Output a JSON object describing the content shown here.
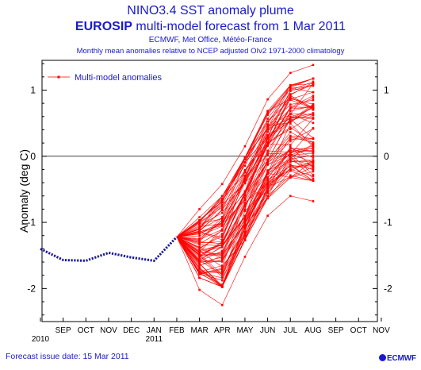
{
  "header": {
    "title": "NINO3.4 SST anomaly plume",
    "subtitle_bold": "EUROSIP",
    "subtitle_rest": "multi-model forecast from 1 Mar 2011",
    "orgs": "ECMWF, Met Office, Météo-France",
    "note": "Monthly mean anomalies relative to NCEP adjusted OIv2 1971-2000 climatology"
  },
  "footer": {
    "issue_date": "Forecast issue date: 15 Mar 2011",
    "logo": "ECMWF"
  },
  "colors": {
    "forecast": "#ff0000",
    "observed": "#1a1a99",
    "text": "#1a1acc"
  },
  "chart_data": {
    "type": "line",
    "xlabel": "",
    "ylabel": "Anomaly (deg C)",
    "ylim": [
      -2.5,
      1.45
    ],
    "yticks": [
      -2,
      -1,
      0,
      1
    ],
    "ytick_labels_left": [
      "-2",
      "-1",
      "0",
      "1"
    ],
    "ytick_labels_right": [
      "-2",
      "-1",
      "0",
      "1"
    ],
    "x_months": [
      "AUG",
      "SEP",
      "OCT",
      "NOV",
      "DEC",
      "JAN",
      "FEB",
      "MAR",
      "APR",
      "MAY",
      "JUN",
      "JUL",
      "AUG",
      "SEP",
      "OCT",
      "NOV"
    ],
    "x_month_labels": [
      "SEP",
      "OCT",
      "NOV",
      "DEC",
      "JAN",
      "FEB",
      "MAR",
      "APR",
      "MAY",
      "JUN",
      "JUL",
      "AUG",
      "SEP",
      "OCT",
      "NOV"
    ],
    "year_labels": [
      {
        "text": "2010",
        "month": "AUG"
      },
      {
        "text": "2011",
        "month": "JAN"
      }
    ],
    "zero_line": true,
    "grid": false,
    "legend": {
      "label": "Multi-model anomalies",
      "placement": "top-left"
    },
    "observed": {
      "months": [
        "AUG",
        "SEP",
        "OCT",
        "NOV",
        "DEC",
        "JAN",
        "FEB"
      ],
      "values": [
        -1.4,
        -1.57,
        -1.58,
        -1.46,
        -1.53,
        -1.58,
        -1.22
      ]
    },
    "forecast_start": {
      "month": "FEB",
      "value": -1.22
    },
    "forecast_months": [
      "MAR",
      "APR",
      "MAY",
      "JUN",
      "JUL",
      "AUG"
    ],
    "forecast_envelope": {
      "months": [
        "MAR",
        "APR",
        "MAY",
        "JUN",
        "JUL",
        "AUG"
      ],
      "min": [
        -2.02,
        -2.25,
        -1.52,
        -0.9,
        -0.6,
        -0.68
      ],
      "max": [
        -0.8,
        -0.42,
        0.15,
        0.86,
        1.26,
        1.38
      ]
    },
    "forecast_members": 80
  }
}
